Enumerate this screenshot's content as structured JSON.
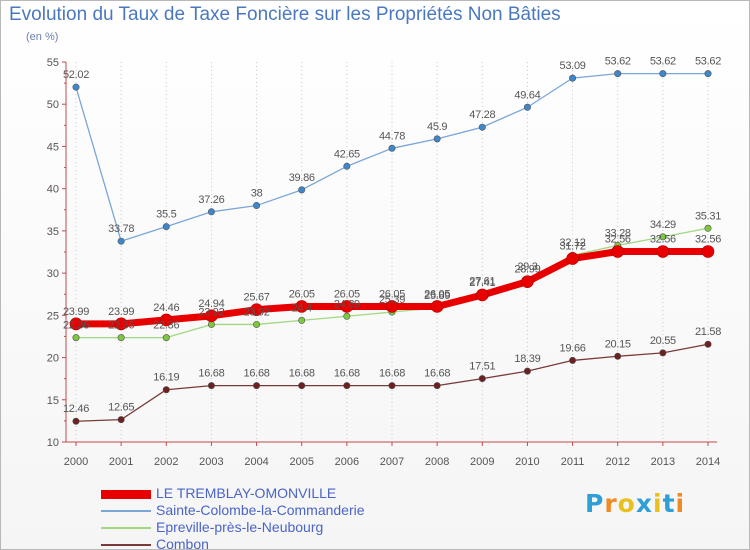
{
  "title": "Evolution du Taux de Taxe Foncière sur les Propriétés Non Bâties",
  "subtitle": "(en %)",
  "logo": {
    "text": "Proxiti",
    "colors": [
      "#2f9fd8",
      "#f08a24",
      "#e8c020",
      "#2f9fd8",
      "#e8c020",
      "#2f9fd8",
      "#f08a24"
    ]
  },
  "chart_data": {
    "type": "line",
    "x": [
      2000,
      2001,
      2002,
      2003,
      2004,
      2005,
      2006,
      2007,
      2008,
      2009,
      2010,
      2011,
      2012,
      2013,
      2014
    ],
    "ylim": [
      10,
      55
    ],
    "yticks": [
      10,
      15,
      20,
      25,
      30,
      35,
      40,
      45,
      50,
      55
    ],
    "grid": "vertical dotted",
    "legend_position": "bottom-left",
    "series": [
      {
        "name": "LE TREMBLAY-OMONVILLE",
        "color": "#e80000",
        "marker": "#e80000",
        "width": 7,
        "values": [
          23.99,
          23.99,
          24.46,
          24.94,
          25.67,
          26.05,
          26.05,
          26.05,
          26.05,
          27.41,
          28.99,
          31.72,
          32.56,
          32.56,
          32.56
        ],
        "labels": [
          "23.99",
          "23.99",
          "24.46",
          "24.94",
          "25.67",
          "26.05",
          "26.05",
          "26.05",
          "26.05",
          "27.41",
          "28.99",
          "31.72",
          "32.56",
          "32.56",
          "32.56"
        ]
      },
      {
        "name": "Sainte-Colombe-la-Commanderie",
        "color": "#7aa6d8",
        "marker": "#3d87cc",
        "width": 1.3,
        "values": [
          52.02,
          33.78,
          35.5,
          37.26,
          38,
          39.86,
          42.65,
          44.78,
          45.9,
          47.28,
          49.64,
          53.09,
          53.62,
          53.62,
          53.62
        ],
        "labels": [
          "52.02",
          "33.78",
          "35.5",
          "37.26",
          "38",
          "39.86",
          "42.65",
          "44.78",
          "45.9",
          "47.28",
          "49.64",
          "53.09",
          "53.62",
          "53.62",
          "53.62"
        ]
      },
      {
        "name": "Epreville-près-le-Neubourg",
        "color": "#9fd880",
        "marker": "#7cc93e",
        "width": 1.3,
        "values": [
          22.36,
          22.36,
          22.36,
          23.92,
          23.92,
          24.4,
          24.89,
          25.39,
          25.89,
          27.61,
          29.3,
          32.12,
          33.28,
          34.29,
          35.31
        ],
        "labels": [
          "22.36",
          "22.36",
          "22.36",
          "23.92",
          "23.92",
          "24.4",
          "24.89",
          "25.39",
          "25.89",
          "27.61",
          "29.3",
          "32.12",
          "33.28",
          "34.29",
          "35.31"
        ]
      },
      {
        "name": "Combon",
        "color": "#7a3a3a",
        "marker": "#6e1f1f",
        "width": 1.3,
        "values": [
          12.46,
          12.65,
          16.19,
          16.68,
          16.68,
          16.68,
          16.68,
          16.68,
          16.68,
          17.51,
          18.39,
          19.66,
          20.15,
          20.55,
          21.58
        ],
        "labels": [
          "12.46",
          "12.65",
          "16.19",
          "16.68",
          "16.68",
          "16.68",
          "16.68",
          "16.68",
          "16.68",
          "17.51",
          "18.39",
          "19.66",
          "20.15",
          "20.55",
          "21.58"
        ]
      }
    ]
  }
}
